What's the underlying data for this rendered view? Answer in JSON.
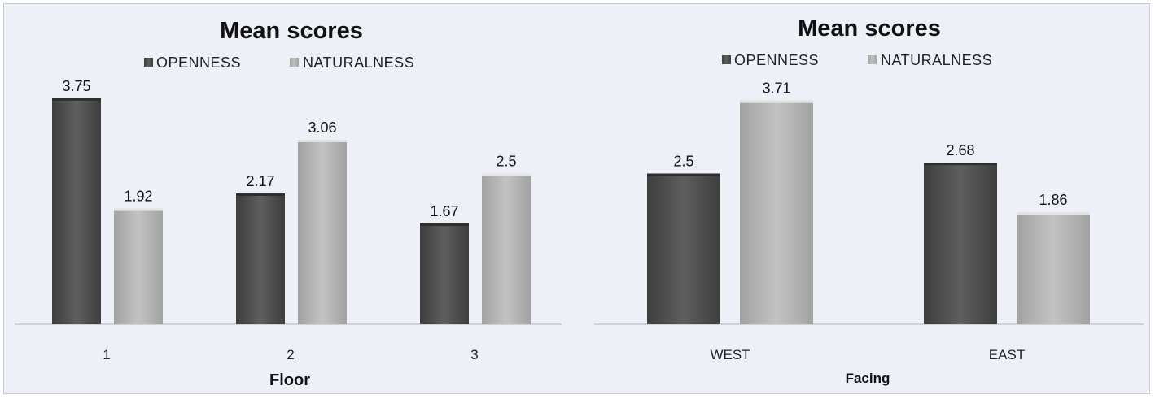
{
  "colors": {
    "background": "#eef0f8",
    "openness": "#555555",
    "naturalness": "#b5b5b5"
  },
  "chart_data": [
    {
      "type": "bar",
      "title": "Mean scores",
      "xlabel": "Floor",
      "ylabel": "",
      "legend_position": "top-center",
      "grid": false,
      "categories": [
        "1",
        "2",
        "3"
      ],
      "series": [
        {
          "name": "OPENNESS",
          "values": [
            3.75,
            2.17,
            1.67
          ],
          "labels": [
            "3.75",
            "2.17",
            "1.67"
          ]
        },
        {
          "name": "NATURALNESS",
          "values": [
            1.92,
            3.06,
            2.5
          ],
          "labels": [
            "1.92",
            "3.06",
            "2.5"
          ]
        }
      ],
      "ylim": [
        0,
        4
      ]
    },
    {
      "type": "bar",
      "title": "Mean scores",
      "xlabel": "Facing",
      "ylabel": "",
      "legend_position": "top-center",
      "grid": false,
      "categories": [
        "WEST",
        "EAST"
      ],
      "series": [
        {
          "name": "OPENNESS",
          "values": [
            2.5,
            2.68
          ],
          "labels": [
            "2.5",
            "2.68"
          ]
        },
        {
          "name": "NATURALNESS",
          "values": [
            3.71,
            1.86
          ],
          "labels": [
            "3.71",
            "1.86"
          ]
        }
      ],
      "ylim": [
        0,
        4
      ]
    }
  ]
}
